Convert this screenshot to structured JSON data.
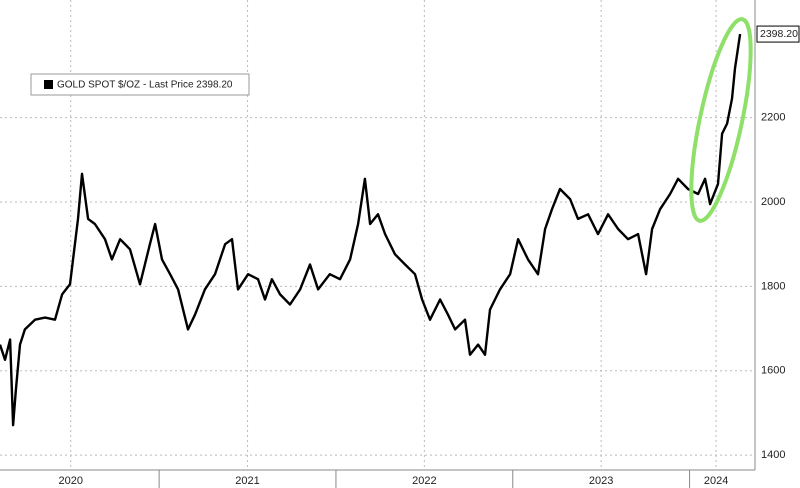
{
  "chart_data": {
    "type": "line",
    "series": [
      {
        "name": "GOLD SPOT $/OZ - Last Price 2398.20",
        "color": "#000000",
        "x": [
          2020.1,
          2020.128,
          2020.157,
          2020.174,
          2020.19,
          2020.213,
          2020.241,
          2020.298,
          2020.355,
          2020.411,
          2020.451,
          2020.496,
          2020.541,
          2020.564,
          2020.598,
          2020.637,
          2020.694,
          2020.733,
          2020.779,
          2020.835,
          2020.892,
          2020.948,
          2020.977,
          2021.016,
          2021.062,
          2021.107,
          2021.163,
          2021.203,
          2021.259,
          2021.316,
          2021.373,
          2021.412,
          2021.446,
          2021.503,
          2021.559,
          2021.599,
          2021.638,
          2021.684,
          2021.74,
          2021.797,
          2021.853,
          2021.899,
          2021.965,
          2022.023,
          2022.08,
          2022.125,
          2022.164,
          2022.193,
          2022.238,
          2022.278,
          2022.334,
          2022.391,
          2022.447,
          2022.487,
          2022.532,
          2022.589,
          2022.634,
          2022.674,
          2022.73,
          2022.758,
          2022.804,
          2022.843,
          2022.871,
          2022.928,
          2022.985,
          2023.03,
          2023.086,
          2023.143,
          2023.183,
          2023.222,
          2023.267,
          2023.324,
          2023.369,
          2023.426,
          2023.482,
          2023.539,
          2023.596,
          2023.652,
          2023.709,
          2023.754,
          2023.788,
          2023.833,
          2023.89,
          2023.935,
          2023.991,
          2024.048,
          2024.088,
          2024.116,
          2024.161,
          2024.184,
          2024.212,
          2024.24,
          2024.257,
          2024.286
        ],
        "values": [
          1662,
          1626,
          1674,
          1471,
          1555,
          1662,
          1698,
          1721,
          1726,
          1721,
          1781,
          1805,
          1960,
          2067,
          1960,
          1948,
          1912,
          1864,
          1912,
          1888,
          1805,
          1900,
          1948,
          1864,
          1829,
          1793,
          1698,
          1733,
          1793,
          1829,
          1900,
          1912,
          1793,
          1829,
          1817,
          1769,
          1817,
          1781,
          1757,
          1793,
          1852,
          1793,
          1829,
          1817,
          1864,
          1948,
          2055,
          1948,
          1971,
          1924,
          1876,
          1852,
          1829,
          1769,
          1721,
          1769,
          1733,
          1698,
          1721,
          1638,
          1662,
          1638,
          1745,
          1793,
          1829,
          1912,
          1864,
          1829,
          1936,
          1983,
          2031,
          2007,
          1960,
          1971,
          1924,
          1971,
          1936,
          1912,
          1924,
          1829,
          1936,
          1983,
          2019,
          2055,
          2031,
          2019,
          2055,
          1995,
          2043,
          2162,
          2186,
          2245,
          2317,
          2398.2
        ]
      }
    ],
    "last_price_label": "2398.20",
    "xlim": [
      2020.1,
      2024.37
    ],
    "xticks": [
      {
        "value": 2020.5,
        "label": "2020"
      },
      {
        "value": 2021.5,
        "label": "2021"
      },
      {
        "value": 2022.5,
        "label": "2022"
      },
      {
        "value": 2023.5,
        "label": "2023"
      },
      {
        "value": 2024.15,
        "label": "2024"
      }
    ],
    "ylim": [
      1360,
      2460
    ],
    "yticks": [
      1400,
      1600,
      1800,
      2000,
      2200
    ],
    "grid": true,
    "legend": "upper left"
  }
}
